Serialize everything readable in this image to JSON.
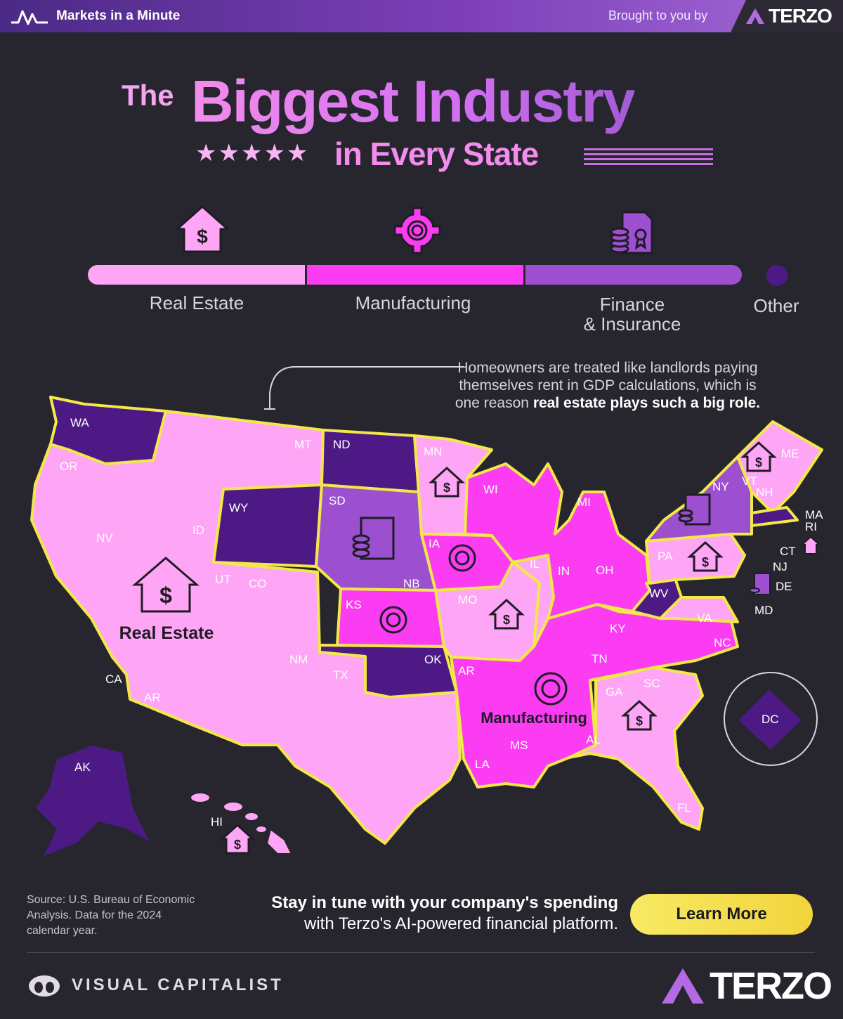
{
  "header": {
    "brand": "Markets in a Minute",
    "brought_by": "Brought to you by",
    "sponsor": "TERZO"
  },
  "title": {
    "the": "The",
    "main": "Biggest Industry",
    "stars": "★★★★★",
    "sub": "in Every State"
  },
  "legend": {
    "items": [
      {
        "label": "Real Estate",
        "color": "#ffa5f6",
        "icon": "house-dollar-icon"
      },
      {
        "label": "Manufacturing",
        "color": "#fb3cf2",
        "icon": "gear-icon"
      },
      {
        "label": "Finance\n& Insurance",
        "color": "#9c50cf",
        "icon": "coins-certificate-icon"
      },
      {
        "label": "Other",
        "color": "#4d1a85"
      }
    ]
  },
  "annotation": {
    "text": "Homeowners are treated like landlords paying themselves rent in GDP calculations, which is one reason",
    "bold": "real estate plays such a big role."
  },
  "map": {
    "region_labels": {
      "real_estate": "Real Estate",
      "manufacturing": "Manufacturing"
    },
    "states": {
      "WA": "Other",
      "OR": "Real Estate",
      "CA": "Real Estate",
      "NV": "Real Estate",
      "ID": "Real Estate",
      "MT": "Real Estate",
      "WY": "Other",
      "UT": "Real Estate",
      "CO": "Real Estate",
      "AZ": "Real Estate",
      "NM": "Real Estate",
      "TX": "Real Estate",
      "ND": "Other",
      "SD": "Finance & Insurance",
      "NB": "Finance & Insurance",
      "KS": "Manufacturing",
      "OK": "Other",
      "MN": "Real Estate",
      "IA": "Manufacturing",
      "MO": "Real Estate",
      "AR": "Manufacturing",
      "LA": "Manufacturing",
      "WI": "Manufacturing",
      "IL": "Real Estate",
      "MI": "Manufacturing",
      "IN": "Manufacturing",
      "OH": "Manufacturing",
      "KY": "Manufacturing",
      "TN": "Manufacturing",
      "MS": "Manufacturing",
      "AL": "Manufacturing",
      "GA": "Real Estate",
      "SC": "Real Estate",
      "FL": "Real Estate",
      "NC": "Manufacturing",
      "VA": "Real Estate",
      "WV": "Other",
      "PA": "Real Estate",
      "NY": "Finance & Insurance",
      "NJ": "Real Estate",
      "DE": "Finance & Insurance",
      "MD": "Real Estate",
      "CT": "Real Estate",
      "RI": "Real Estate",
      "MA": "Other",
      "VT": "Real Estate",
      "NH": "Real Estate",
      "ME": "Real Estate",
      "AK": "Other",
      "HI": "Real Estate",
      "DC": "Other"
    },
    "labels": {
      "WA": "WA",
      "OR": "OR",
      "CA": "CA",
      "NV": "NV",
      "ID": "ID",
      "MT": "MT",
      "WY": "WY",
      "UT": "UT",
      "CO": "CO",
      "AR_west": "AR",
      "NM": "NM",
      "TX": "TX",
      "ND": "ND",
      "SD": "SD",
      "NB": "NB",
      "KS": "KS",
      "OK": "OK",
      "MN": "MN",
      "IA": "IA",
      "MO": "MO",
      "AR": "AR",
      "LA": "LA",
      "WI": "WI",
      "IL": "IL",
      "MI": "MI",
      "IN": "IN",
      "OH": "OH",
      "KY": "KY",
      "TN": "TN",
      "MS": "MS",
      "AL": "AL",
      "GA": "GA",
      "SC": "SC",
      "FL": "FL",
      "NC": "NC",
      "VA": "VA",
      "WV": "WV",
      "PA": "PA",
      "NY": "NY",
      "NJ": "NJ",
      "DE": "DE",
      "MD": "MD",
      "CT": "CT",
      "RI": "RI",
      "MA": "MA",
      "VT": "VT",
      "NH": "NH",
      "ME": "ME",
      "AK": "AK",
      "HI": "HI",
      "DC": "DC"
    }
  },
  "footer": {
    "source": "Source: U.S. Bureau of Economic Analysis. Data for the 2024 calendar year.",
    "cta_bold": "Stay in tune with your company's spending",
    "cta_rest": "with Terzo's AI-powered financial platform.",
    "button": "Learn More",
    "publisher": "VISUAL CAPITALIST",
    "sponsor": "TERZO"
  },
  "colors": {
    "real_estate": "#ffa5f6",
    "manufacturing": "#fb3cf2",
    "finance": "#9c50cf",
    "other": "#4d1a85",
    "background": "#27262f",
    "border": "#f2e84a"
  }
}
